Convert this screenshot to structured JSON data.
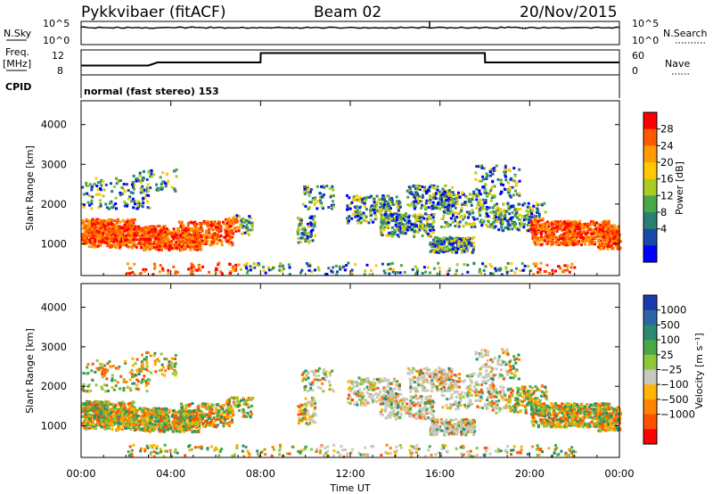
{
  "header": {
    "station": "Pykkvibaer (fitACF)",
    "beam": "Beam 02",
    "date": "20/Nov/2015"
  },
  "noise_panel": {
    "left_label": "N.Sky",
    "right_label": "N.Search",
    "left_ticks": [
      "10^5",
      "10^0"
    ],
    "right_ticks": [
      "10^5",
      "10^0"
    ]
  },
  "freq_panel": {
    "left_label_1": "Freq.",
    "left_label_2": "[MHz]",
    "right_label": "Nave",
    "left_ticks": [
      "12",
      "8"
    ],
    "right_ticks": [
      "60",
      "0"
    ]
  },
  "cpid": {
    "label": "CPID",
    "value": "normal (fast stereo) 153"
  },
  "chart_data": [
    {
      "type": "line",
      "panel": "noise",
      "series": [
        {
          "name": "N.Sky",
          "style": "solid",
          "level": "near 10^5 throughout, small spike near 15:30"
        },
        {
          "name": "N.Search",
          "style": "dotted",
          "level": "near 10^5"
        }
      ],
      "x_range_hours": [
        0,
        24
      ]
    },
    {
      "type": "line",
      "panel": "frequency",
      "series": [
        {
          "name": "Freq.",
          "style": "solid",
          "x": [
            0,
            3,
            3.4,
            8,
            8.01,
            18,
            18.01,
            24
          ],
          "y": [
            9.5,
            9.5,
            10,
            10,
            11.5,
            11.5,
            10,
            10
          ]
        },
        {
          "name": "Nave",
          "style": "dotted",
          "x": [
            0,
            24
          ],
          "y": [
            12,
            12
          ]
        }
      ],
      "ylim": [
        8,
        12
      ]
    },
    {
      "type": "heatmap",
      "panel": "power",
      "x_ticks": [
        "00:00",
        "04:00",
        "08:00",
        "12:00",
        "16:00",
        "20:00",
        "00:00"
      ],
      "y_ticks": [
        "1000",
        "2000",
        "3000",
        "4000"
      ],
      "ylabel": "Slant Range [km]",
      "ylim": [
        200,
        4600
      ],
      "colorbar": {
        "label": "Power [dB]",
        "ticks": [
          "28",
          "24",
          "20",
          "16",
          "12",
          "8",
          "4"
        ],
        "colors": [
          "#ff0000",
          "#ff5a00",
          "#ff9a00",
          "#ffc800",
          "#aacc22",
          "#48a848",
          "#2a8070",
          "#1a4aa8",
          "#0000ff"
        ]
      }
    },
    {
      "type": "heatmap",
      "panel": "velocity",
      "x_ticks": [
        "00:00",
        "04:00",
        "08:00",
        "12:00",
        "16:00",
        "20:00",
        "00:00"
      ],
      "y_ticks": [
        "1000",
        "2000",
        "3000",
        "4000"
      ],
      "ylabel": "Slant Range [km]",
      "xlabel": "Time UT",
      "ylim": [
        200,
        4600
      ],
      "colorbar": {
        "label": "Velocity [m s⁻¹]",
        "ticks": [
          "1000",
          "500",
          "100",
          "25",
          "−25",
          "−100",
          "−500",
          "−1000"
        ],
        "colors": [
          "#1c3ab0",
          "#2a66a6",
          "#2a8a70",
          "#48a848",
          "#8ec83a",
          "#c8c8c0",
          "#ffb400",
          "#ff8400",
          "#ff5000",
          "#ff0000"
        ]
      }
    }
  ],
  "plot_colors": {
    "ground": "#c8c8c0"
  }
}
